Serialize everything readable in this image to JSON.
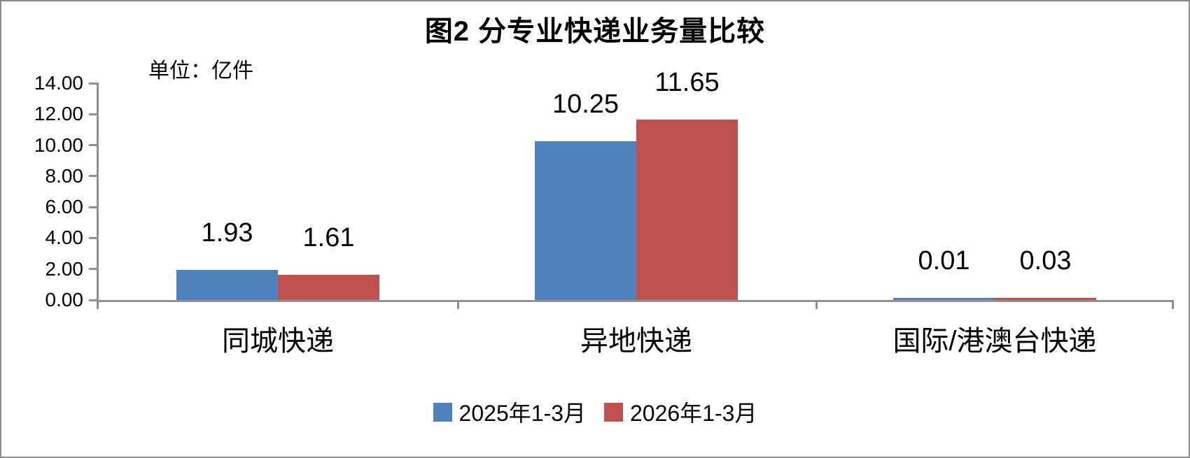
{
  "chart_data": {
    "type": "bar",
    "title": "图2 分专业快递业务量比较",
    "unit_label": "单位：亿件",
    "categories": [
      "同城快递",
      "异地快递",
      "国际/港澳台快递"
    ],
    "series": [
      {
        "name": "2025年1-3月",
        "color": "#4F81BD",
        "values": [
          1.93,
          10.25,
          0.01
        ],
        "value_labels": [
          "1.93",
          "10.25",
          "0.01"
        ]
      },
      {
        "name": "2026年1-3月",
        "color": "#C0504D",
        "values": [
          1.61,
          11.65,
          0.03
        ],
        "value_labels": [
          "1.61",
          "11.65",
          "0.03"
        ]
      }
    ],
    "y_axis": {
      "min": 0,
      "max": 14,
      "step": 2,
      "tick_labels": [
        "0.00",
        "2.00",
        "4.00",
        "6.00",
        "8.00",
        "10.00",
        "12.00",
        "14.00"
      ]
    },
    "ylim": [
      0,
      14
    ],
    "grid": false,
    "legend_position": "bottom",
    "colors": {
      "axis": "#919191",
      "frame_border": "#8a8a8a",
      "text": "#000000",
      "background": "#ffffff"
    }
  }
}
